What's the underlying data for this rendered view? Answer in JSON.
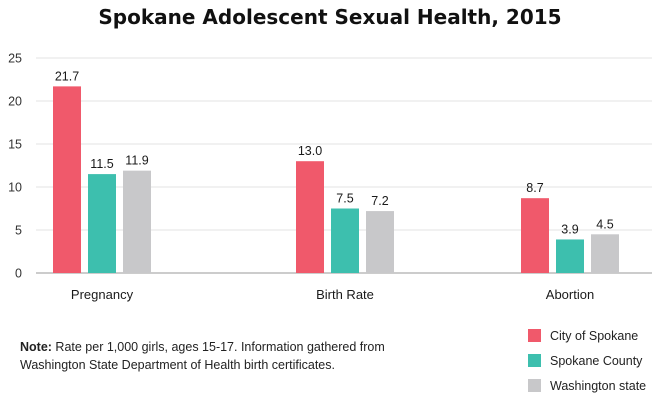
{
  "chart_data": {
    "type": "bar",
    "title": "Spokane Adolescent Sexual Health, 2015",
    "categories": [
      "Pregnancy",
      "Birth Rate",
      "Abortion"
    ],
    "series": [
      {
        "name": "City of Spokane",
        "color": "#f0596b",
        "values": [
          21.7,
          13.0,
          8.7
        ],
        "labels": [
          "21.7",
          "13.0",
          "8.7"
        ]
      },
      {
        "name": "Spokane County",
        "color": "#3dbfae",
        "values": [
          11.5,
          7.5,
          3.9
        ],
        "labels": [
          "11.5",
          "7.5",
          "3.9"
        ]
      },
      {
        "name": "Washington state",
        "color": "#c8c8ca",
        "values": [
          11.9,
          7.2,
          4.5
        ],
        "labels": [
          "11.9",
          "7.2",
          "4.5"
        ]
      }
    ],
    "yticks": [
      "0",
      "5",
      "10",
      "15",
      "20",
      "25"
    ],
    "ylim": [
      0,
      25
    ],
    "grid": true,
    "legend": "bottom-right",
    "xlabel": "",
    "ylabel": ""
  },
  "note": {
    "label": "Note:",
    "text": " Rate per 1,000 girls, ages 15-17. Information gathered from Washington State Department of Health birth certificates."
  }
}
